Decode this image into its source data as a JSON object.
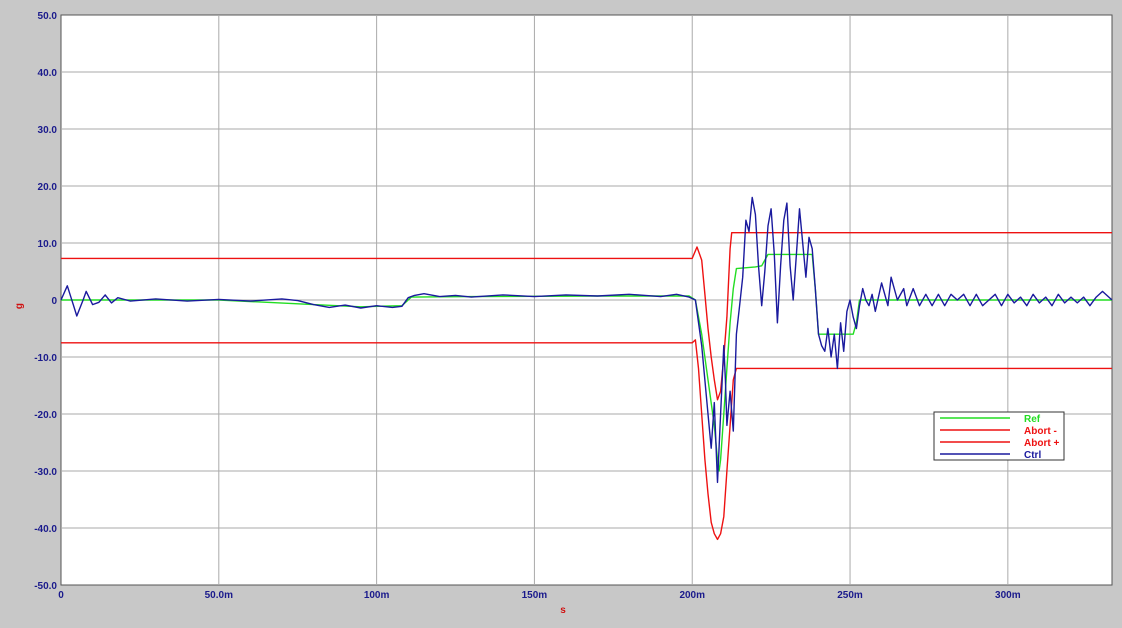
{
  "chart_data": {
    "type": "line",
    "xlabel": "s",
    "ylabel": "g",
    "xlim": [
      0,
      0.333
    ],
    "ylim": [
      -50,
      50
    ],
    "grid": true,
    "legend_position": "bottom-right",
    "x_ticks": [
      {
        "value": 0,
        "label": "0"
      },
      {
        "value": 0.05,
        "label": "50.0m"
      },
      {
        "value": 0.1,
        "label": "100m"
      },
      {
        "value": 0.15,
        "label": "150m"
      },
      {
        "value": 0.2,
        "label": "200m"
      },
      {
        "value": 0.25,
        "label": "250m"
      },
      {
        "value": 0.3,
        "label": "300m"
      }
    ],
    "y_ticks": [
      {
        "value": 50,
        "label": "50.0"
      },
      {
        "value": 40,
        "label": "40.0"
      },
      {
        "value": 30,
        "label": "30.0"
      },
      {
        "value": 20,
        "label": "20.0"
      },
      {
        "value": 10,
        "label": "10.0"
      },
      {
        "value": 0,
        "label": "0"
      },
      {
        "value": -10,
        "label": "-10.0"
      },
      {
        "value": -20,
        "label": "-20.0"
      },
      {
        "value": -30,
        "label": "-30.0"
      },
      {
        "value": -40,
        "label": "-40.0"
      },
      {
        "value": -50,
        "label": "-50.0"
      }
    ],
    "series": [
      {
        "name": "Ref",
        "color": "#22dd22",
        "points": [
          [
            0,
            0
          ],
          [
            0.05,
            0
          ],
          [
            0.08,
            -0.8
          ],
          [
            0.095,
            -1.2
          ],
          [
            0.108,
            -1.0
          ],
          [
            0.111,
            0.5
          ],
          [
            0.13,
            0.6
          ],
          [
            0.17,
            0.7
          ],
          [
            0.199,
            0.7
          ],
          [
            0.201,
            0
          ],
          [
            0.203,
            -6
          ],
          [
            0.205,
            -14
          ],
          [
            0.207,
            -22
          ],
          [
            0.208,
            -28
          ],
          [
            0.2085,
            -30
          ],
          [
            0.209,
            -28
          ],
          [
            0.21,
            -20
          ],
          [
            0.211,
            -12
          ],
          [
            0.212,
            -4
          ],
          [
            0.213,
            2
          ],
          [
            0.214,
            5.5
          ],
          [
            0.22,
            5.8
          ],
          [
            0.222,
            6
          ],
          [
            0.224,
            8
          ],
          [
            0.238,
            8
          ],
          [
            0.239,
            2
          ],
          [
            0.24,
            -6
          ],
          [
            0.251,
            -6
          ],
          [
            0.252,
            -4
          ],
          [
            0.253,
            0
          ],
          [
            0.333,
            0
          ]
        ]
      },
      {
        "name": "Abort  -",
        "color": "#ee1111",
        "points": [
          [
            0,
            -7.5
          ],
          [
            0.2,
            -7.5
          ],
          [
            0.201,
            -7.0
          ],
          [
            0.202,
            -12
          ],
          [
            0.203,
            -20
          ],
          [
            0.204,
            -28
          ],
          [
            0.205,
            -34
          ],
          [
            0.206,
            -39
          ],
          [
            0.207,
            -41
          ],
          [
            0.208,
            -42
          ],
          [
            0.209,
            -41
          ],
          [
            0.21,
            -38
          ],
          [
            0.211,
            -30
          ],
          [
            0.212,
            -22
          ],
          [
            0.213,
            -14
          ],
          [
            0.214,
            -12
          ],
          [
            0.333,
            -12
          ]
        ]
      },
      {
        "name": "Abort  +",
        "color": "#ee1111",
        "points": [
          [
            0,
            7.3
          ],
          [
            0.2,
            7.3
          ],
          [
            0.2015,
            9.3
          ],
          [
            0.203,
            7
          ],
          [
            0.204,
            1
          ],
          [
            0.205,
            -5
          ],
          [
            0.206,
            -10
          ],
          [
            0.207,
            -14
          ],
          [
            0.208,
            -17.5
          ],
          [
            0.209,
            -16
          ],
          [
            0.21,
            -10
          ],
          [
            0.211,
            -3
          ],
          [
            0.2115,
            3
          ],
          [
            0.212,
            9
          ],
          [
            0.2125,
            11.8
          ],
          [
            0.333,
            11.8
          ]
        ]
      },
      {
        "name": "Ctrl",
        "color": "#1a1a9e",
        "points": [
          [
            0,
            0
          ],
          [
            0.002,
            2.5
          ],
          [
            0.004,
            -1
          ],
          [
            0.005,
            -2.8
          ],
          [
            0.007,
            0
          ],
          [
            0.008,
            1.5
          ],
          [
            0.01,
            -0.8
          ],
          [
            0.012,
            -0.4
          ],
          [
            0.014,
            0.9
          ],
          [
            0.016,
            -0.5
          ],
          [
            0.018,
            0.4
          ],
          [
            0.022,
            -0.2
          ],
          [
            0.03,
            0.2
          ],
          [
            0.04,
            -0.2
          ],
          [
            0.05,
            0.1
          ],
          [
            0.06,
            -0.2
          ],
          [
            0.07,
            0.2
          ],
          [
            0.075,
            -0.1
          ],
          [
            0.08,
            -0.8
          ],
          [
            0.085,
            -1.3
          ],
          [
            0.09,
            -0.9
          ],
          [
            0.095,
            -1.4
          ],
          [
            0.1,
            -1.0
          ],
          [
            0.105,
            -1.3
          ],
          [
            0.108,
            -1.1
          ],
          [
            0.11,
            0.4
          ],
          [
            0.112,
            0.8
          ],
          [
            0.115,
            1.1
          ],
          [
            0.12,
            0.6
          ],
          [
            0.125,
            0.8
          ],
          [
            0.13,
            0.5
          ],
          [
            0.14,
            0.9
          ],
          [
            0.15,
            0.6
          ],
          [
            0.16,
            0.9
          ],
          [
            0.17,
            0.7
          ],
          [
            0.18,
            1.0
          ],
          [
            0.19,
            0.6
          ],
          [
            0.195,
            1.0
          ],
          [
            0.199,
            0.5
          ],
          [
            0.201,
            0
          ],
          [
            0.203,
            -8
          ],
          [
            0.205,
            -20
          ],
          [
            0.206,
            -26
          ],
          [
            0.207,
            -18
          ],
          [
            0.208,
            -32
          ],
          [
            0.209,
            -20
          ],
          [
            0.21,
            -8
          ],
          [
            0.2105,
            -14
          ],
          [
            0.211,
            -22
          ],
          [
            0.212,
            -16
          ],
          [
            0.213,
            -23
          ],
          [
            0.214,
            -6
          ],
          [
            0.215,
            -1
          ],
          [
            0.216,
            4
          ],
          [
            0.217,
            14
          ],
          [
            0.218,
            12
          ],
          [
            0.219,
            18
          ],
          [
            0.22,
            15
          ],
          [
            0.221,
            6
          ],
          [
            0.222,
            -1
          ],
          [
            0.223,
            5
          ],
          [
            0.224,
            13
          ],
          [
            0.225,
            16
          ],
          [
            0.226,
            8
          ],
          [
            0.227,
            -4
          ],
          [
            0.228,
            6
          ],
          [
            0.229,
            14
          ],
          [
            0.23,
            17
          ],
          [
            0.231,
            6
          ],
          [
            0.232,
            0
          ],
          [
            0.233,
            8
          ],
          [
            0.234,
            16
          ],
          [
            0.235,
            10
          ],
          [
            0.236,
            4
          ],
          [
            0.237,
            11
          ],
          [
            0.238,
            9
          ],
          [
            0.239,
            2
          ],
          [
            0.24,
            -6
          ],
          [
            0.241,
            -8
          ],
          [
            0.242,
            -9
          ],
          [
            0.243,
            -5
          ],
          [
            0.244,
            -10
          ],
          [
            0.245,
            -6
          ],
          [
            0.246,
            -12
          ],
          [
            0.247,
            -4
          ],
          [
            0.248,
            -9
          ],
          [
            0.249,
            -2
          ],
          [
            0.25,
            0
          ],
          [
            0.251,
            -3
          ],
          [
            0.252,
            -5
          ],
          [
            0.253,
            -1
          ],
          [
            0.254,
            2
          ],
          [
            0.255,
            0
          ],
          [
            0.256,
            -1
          ],
          [
            0.257,
            1
          ],
          [
            0.258,
            -2
          ],
          [
            0.26,
            3
          ],
          [
            0.262,
            -1
          ],
          [
            0.263,
            4
          ],
          [
            0.265,
            0
          ],
          [
            0.267,
            2
          ],
          [
            0.268,
            -1
          ],
          [
            0.27,
            2
          ],
          [
            0.272,
            -1
          ],
          [
            0.274,
            1
          ],
          [
            0.276,
            -1
          ],
          [
            0.278,
            1
          ],
          [
            0.28,
            -1
          ],
          [
            0.282,
            1
          ],
          [
            0.284,
            0
          ],
          [
            0.286,
            1
          ],
          [
            0.288,
            -1
          ],
          [
            0.29,
            1
          ],
          [
            0.292,
            -1
          ],
          [
            0.294,
            0
          ],
          [
            0.296,
            1
          ],
          [
            0.298,
            -1
          ],
          [
            0.3,
            1
          ],
          [
            0.302,
            -0.5
          ],
          [
            0.304,
            0.5
          ],
          [
            0.306,
            -1
          ],
          [
            0.308,
            1
          ],
          [
            0.31,
            -0.5
          ],
          [
            0.312,
            0.5
          ],
          [
            0.314,
            -1
          ],
          [
            0.316,
            1
          ],
          [
            0.318,
            -0.5
          ],
          [
            0.32,
            0.5
          ],
          [
            0.322,
            -0.5
          ],
          [
            0.324,
            0.5
          ],
          [
            0.326,
            -1
          ],
          [
            0.328,
            0.5
          ],
          [
            0.33,
            1.5
          ],
          [
            0.333,
            0
          ]
        ]
      }
    ]
  }
}
